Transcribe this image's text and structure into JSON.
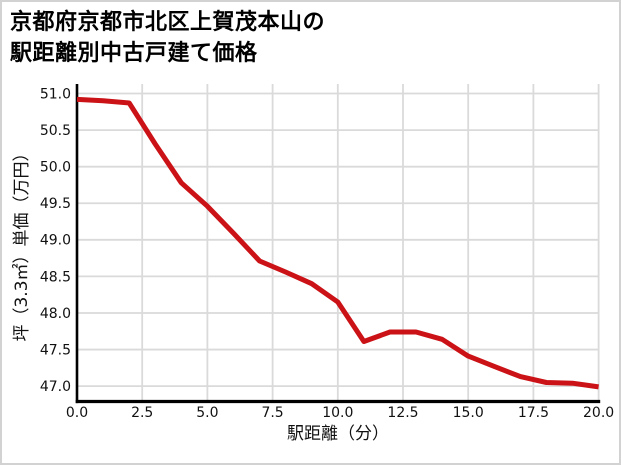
{
  "window": {
    "background": "#ffffff",
    "border_color": "#d2d2d2"
  },
  "chart_data": {
    "type": "line",
    "title": "京都府京都市北区上賀茂本山の駅距離別中古戸建て価格",
    "title_lines": [
      "京都府京都市北区上賀茂本山の",
      "駅距離別中古戸建て価格"
    ],
    "xlabel": "駅距離（分）",
    "ylabel": "坪（3.3㎡）単価（万円）",
    "x": [
      0,
      1,
      2,
      3,
      4,
      5,
      6,
      7,
      8,
      9,
      10,
      11,
      12,
      13,
      14,
      15,
      16,
      17,
      18,
      19,
      20
    ],
    "values": [
      50.92,
      50.9,
      50.87,
      50.31,
      49.78,
      49.46,
      49.09,
      48.71,
      48.56,
      48.4,
      48.15,
      47.61,
      47.74,
      47.74,
      47.64,
      47.41,
      47.27,
      47.13,
      47.05,
      47.04,
      46.99
    ],
    "xticks": [
      0,
      2.5,
      5,
      7.5,
      10,
      12.5,
      15,
      17.5,
      20
    ],
    "yticks": [
      47.0,
      47.5,
      48.0,
      48.5,
      49.0,
      49.5,
      50.0,
      50.5,
      51.0
    ],
    "xlim": [
      0,
      20
    ],
    "ylim": [
      46.79,
      51.13
    ],
    "tick_decimals": 1,
    "grid": true,
    "legend": false,
    "line_color": "#cb1216",
    "grid_color": "#dadada",
    "spine_color": "#000000",
    "tick_label_color": "#111111",
    "title_color": "#000000"
  }
}
